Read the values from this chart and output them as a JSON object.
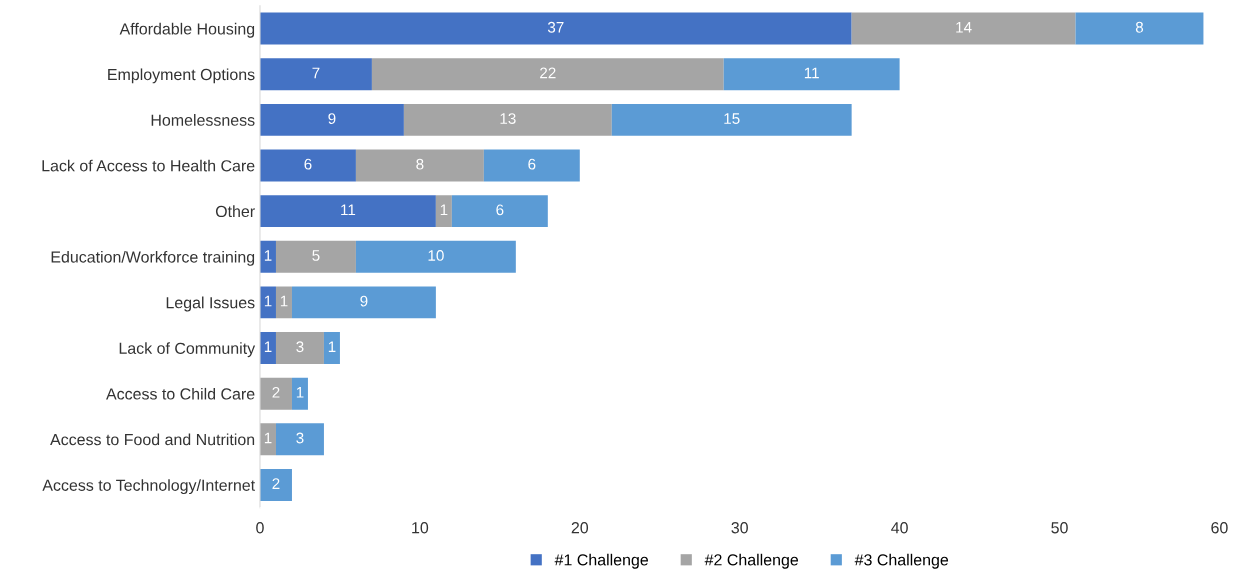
{
  "chart_data": {
    "type": "bar",
    "orientation": "horizontal",
    "stacked": true,
    "categories": [
      "Affordable Housing",
      "Employment Options",
      "Homelessness",
      "Lack of Access to Health Care",
      "Other",
      "Education/Workforce training",
      "Legal Issues",
      "Lack of Community",
      "Access to Child Care",
      "Access to Food and Nutrition",
      "Access to Technology/Internet"
    ],
    "series": [
      {
        "name": "#1 Challenge",
        "color": "#4472c4",
        "values": [
          37,
          7,
          9,
          6,
          11,
          1,
          1,
          1,
          null,
          null,
          null
        ]
      },
      {
        "name": "#2 Challenge",
        "color": "#a5a5a5",
        "values": [
          14,
          22,
          13,
          8,
          1,
          5,
          1,
          3,
          2,
          1,
          null
        ]
      },
      {
        "name": "#3 Challenge",
        "color": "#5b9bd5",
        "values": [
          8,
          11,
          15,
          6,
          6,
          10,
          9,
          1,
          1,
          3,
          2
        ]
      }
    ],
    "xlim": [
      0,
      60
    ],
    "xticks": [
      0,
      10,
      20,
      30,
      40,
      50,
      60
    ],
    "grid": false,
    "legend": "bottom",
    "data_labels": true
  }
}
